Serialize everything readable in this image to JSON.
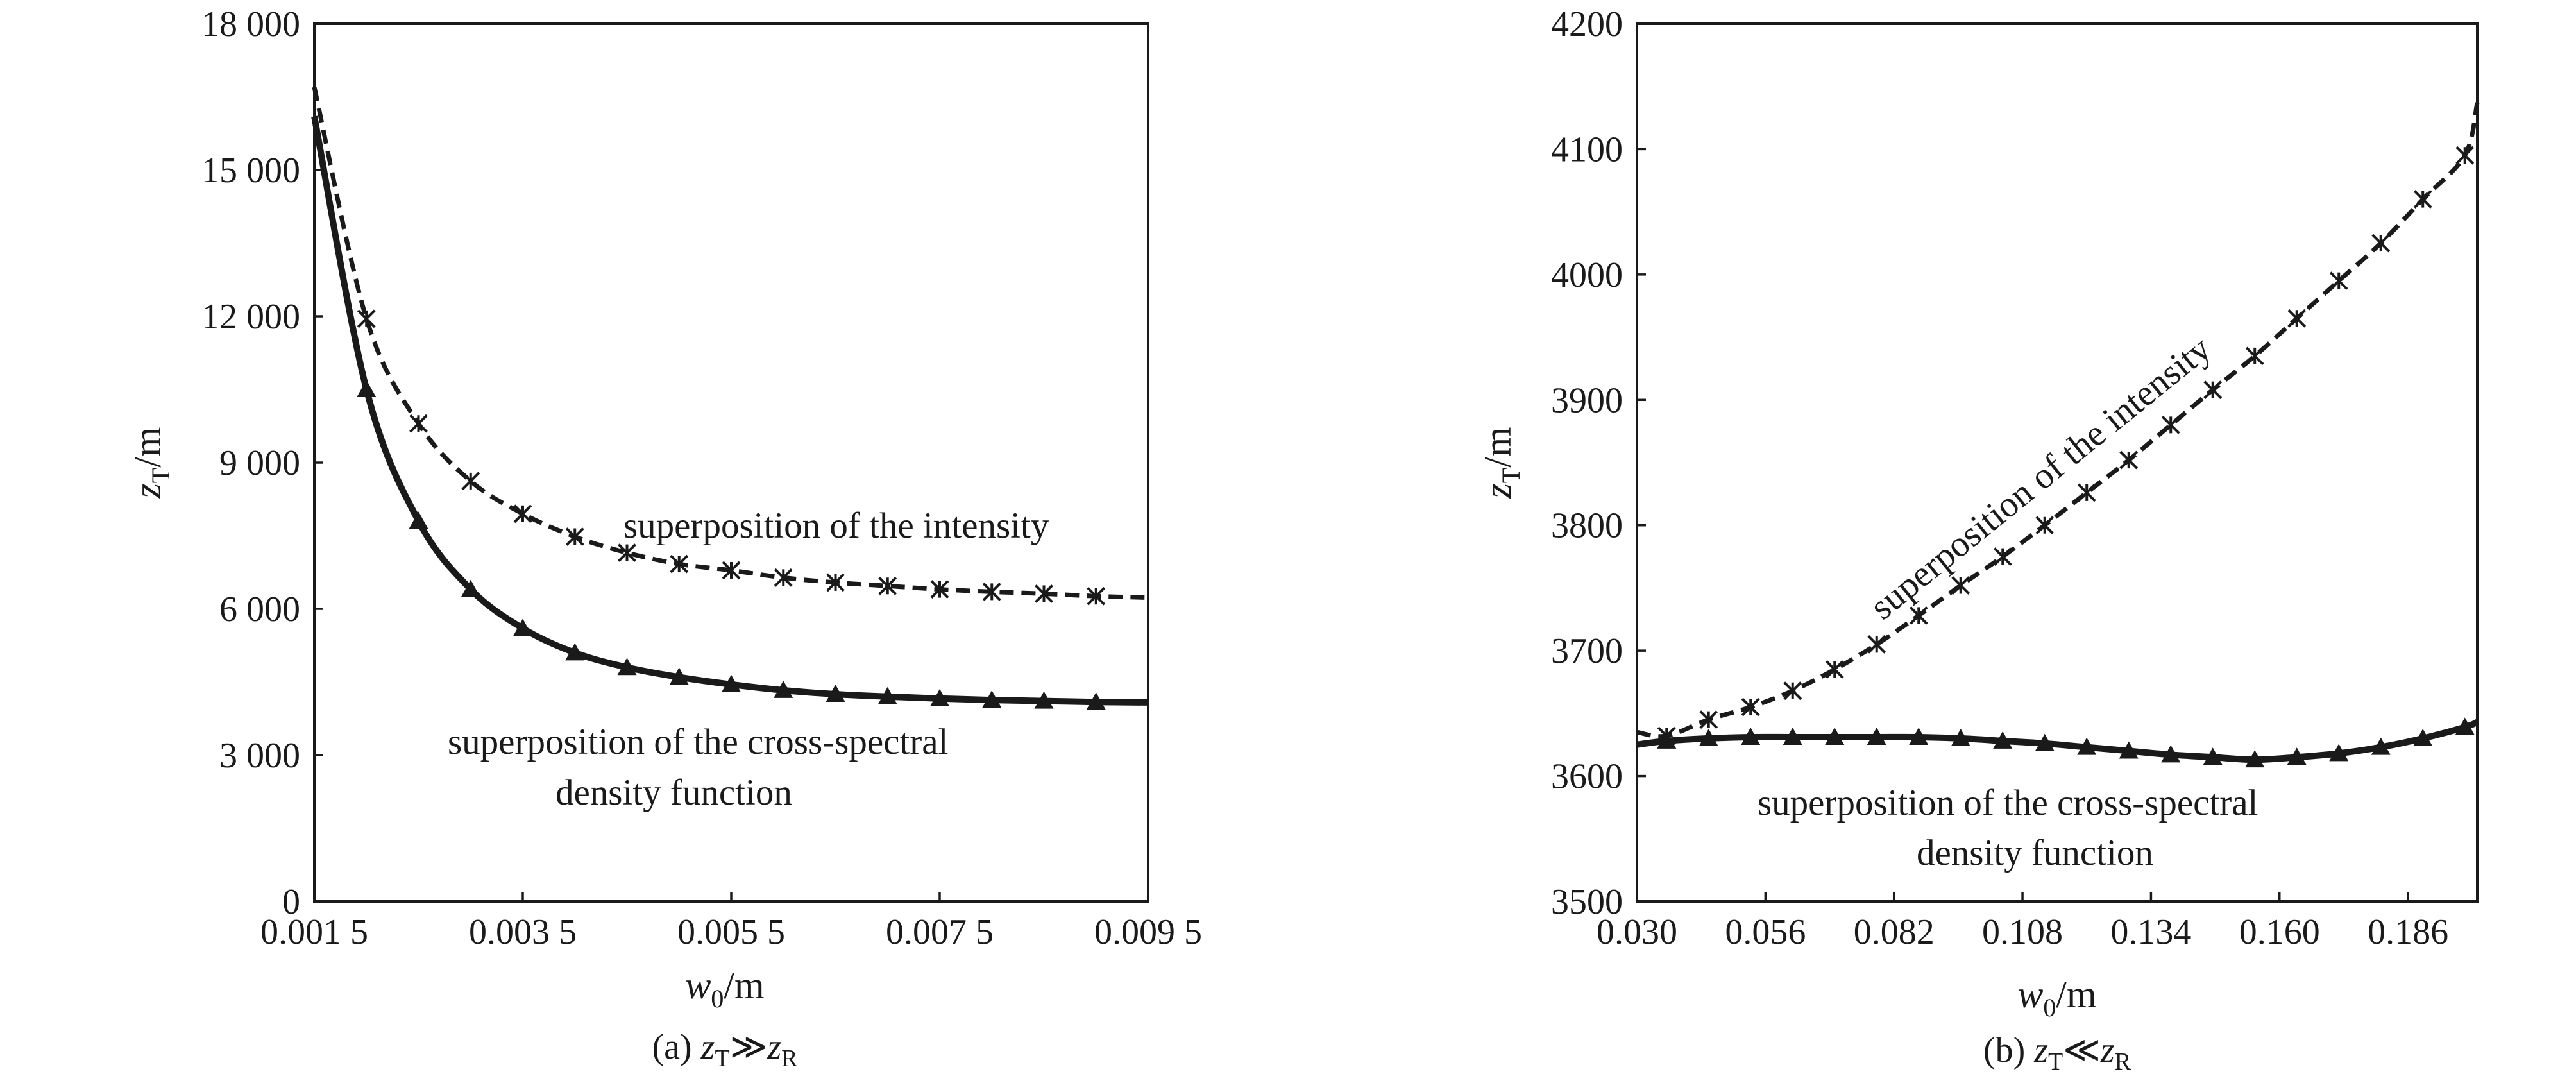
{
  "chart_data": [
    {
      "type": "line",
      "caption_prefix": "(a) ",
      "caption_left": "z",
      "caption_left_sub": "T",
      "caption_relation": "≫",
      "caption_right": "z",
      "caption_right_sub": "R",
      "xlabel_main": "w",
      "xlabel_sub": "0",
      "xlabel_unit": "/m",
      "ylabel_main": "z",
      "ylabel_sub": "T",
      "ylabel_unit": "/m",
      "xlim": [
        0.0015,
        0.0095
      ],
      "ylim": [
        0,
        18000
      ],
      "x_ticks": [
        {
          "value": 0.0015,
          "label": "0.001 5"
        },
        {
          "value": 0.0035,
          "label": "0.003 5"
        },
        {
          "value": 0.0055,
          "label": "0.005 5"
        },
        {
          "value": 0.0075,
          "label": "0.007 5"
        },
        {
          "value": 0.0095,
          "label": "0.009 5"
        }
      ],
      "y_ticks": [
        {
          "value": 0,
          "label": "0"
        },
        {
          "value": 3000,
          "label": "3 000"
        },
        {
          "value": 6000,
          "label": "6 000"
        },
        {
          "value": 9000,
          "label": "9 000"
        },
        {
          "value": 12000,
          "label": "12 000"
        },
        {
          "value": 15000,
          "label": "15 000"
        },
        {
          "value": 18000,
          "label": "18 000"
        }
      ],
      "grid": false,
      "annotations": [
        {
          "series": "intensity",
          "lines": [
            "superposition of the intensity"
          ]
        },
        {
          "series": "cross",
          "lines": [
            "superposition of the cross-spectral",
            "density function"
          ]
        }
      ],
      "series": [
        {
          "key": "intensity",
          "style": "dashed",
          "marker": "asterisk",
          "color": "#1a1a1a",
          "x": [
            0.0015,
            0.002,
            0.0025,
            0.003,
            0.0035,
            0.004,
            0.0045,
            0.005,
            0.0055,
            0.006,
            0.0065,
            0.007,
            0.0075,
            0.008,
            0.0085,
            0.009,
            0.0095
          ],
          "y": [
            16700,
            11950,
            9800,
            8620,
            7950,
            7480,
            7150,
            6920,
            6790,
            6640,
            6540,
            6470,
            6400,
            6350,
            6310,
            6260,
            6230
          ]
        },
        {
          "key": "cross",
          "style": "solid",
          "marker": "triangle",
          "color": "#1a1a1a",
          "x": [
            0.0015,
            0.002,
            0.0025,
            0.003,
            0.0035,
            0.004,
            0.0045,
            0.005,
            0.0055,
            0.006,
            0.0065,
            0.007,
            0.0075,
            0.008,
            0.0085,
            0.009,
            0.0095
          ],
          "y": [
            16100,
            10500,
            7800,
            6400,
            5600,
            5100,
            4800,
            4600,
            4450,
            4330,
            4250,
            4200,
            4160,
            4130,
            4110,
            4090,
            4080
          ]
        }
      ]
    },
    {
      "type": "line",
      "caption_prefix": "(b) ",
      "caption_left": "z",
      "caption_left_sub": "T",
      "caption_relation": "≪",
      "caption_right": "z",
      "caption_right_sub": "R",
      "xlabel_main": "w",
      "xlabel_sub": "0",
      "xlabel_unit": "/m",
      "ylabel_main": "z",
      "ylabel_sub": "T",
      "ylabel_unit": "/m",
      "xlim": [
        0.03,
        0.2
      ],
      "ylim": [
        3500,
        4200
      ],
      "x_ticks": [
        {
          "value": 0.03,
          "label": "0.030"
        },
        {
          "value": 0.056,
          "label": "0.056"
        },
        {
          "value": 0.082,
          "label": "0.082"
        },
        {
          "value": 0.108,
          "label": "0.108"
        },
        {
          "value": 0.134,
          "label": "0.134"
        },
        {
          "value": 0.16,
          "label": "0.160"
        },
        {
          "value": 0.186,
          "label": "0.186"
        }
      ],
      "y_ticks": [
        {
          "value": 3500,
          "label": "3500"
        },
        {
          "value": 3600,
          "label": "3600"
        },
        {
          "value": 3700,
          "label": "3700"
        },
        {
          "value": 3800,
          "label": "3800"
        },
        {
          "value": 3900,
          "label": "3900"
        },
        {
          "value": 4000,
          "label": "4000"
        },
        {
          "value": 4100,
          "label": "4100"
        },
        {
          "value": 4200,
          "label": "4200"
        }
      ],
      "grid": false,
      "annotations": [
        {
          "series": "intensity",
          "lines": [
            "superposition of the intensity"
          ]
        },
        {
          "series": "cross",
          "lines": [
            "superposition of the cross-spectral",
            "density function"
          ]
        }
      ],
      "series": [
        {
          "key": "intensity",
          "style": "dashed",
          "marker": "asterisk",
          "color": "#1a1a1a",
          "x": [
            0.03,
            0.036,
            0.0445,
            0.053,
            0.0615,
            0.07,
            0.0785,
            0.087,
            0.0955,
            0.104,
            0.1125,
            0.121,
            0.1295,
            0.138,
            0.1465,
            0.155,
            0.1635,
            0.172,
            0.1805,
            0.189,
            0.1975,
            0.2
          ],
          "y": [
            3635,
            3632,
            3645,
            3655,
            3668,
            3685,
            3705,
            3728,
            3752,
            3775,
            3800,
            3826,
            3852,
            3880,
            3908,
            3935,
            3965,
            3995,
            4025,
            4060,
            4095,
            4137
          ]
        },
        {
          "key": "cross",
          "style": "solid",
          "marker": "triangle",
          "color": "#1a1a1a",
          "x": [
            0.03,
            0.036,
            0.0445,
            0.053,
            0.0615,
            0.07,
            0.0785,
            0.087,
            0.0955,
            0.104,
            0.1125,
            0.121,
            0.1295,
            0.138,
            0.1465,
            0.155,
            0.1635,
            0.172,
            0.1805,
            0.189,
            0.1975,
            0.2
          ],
          "y": [
            3625,
            3628,
            3630,
            3631,
            3631,
            3631,
            3631,
            3631,
            3630,
            3628,
            3626,
            3623,
            3620,
            3617,
            3615,
            3613,
            3615,
            3618,
            3623,
            3630,
            3639,
            3643
          ]
        }
      ]
    }
  ]
}
